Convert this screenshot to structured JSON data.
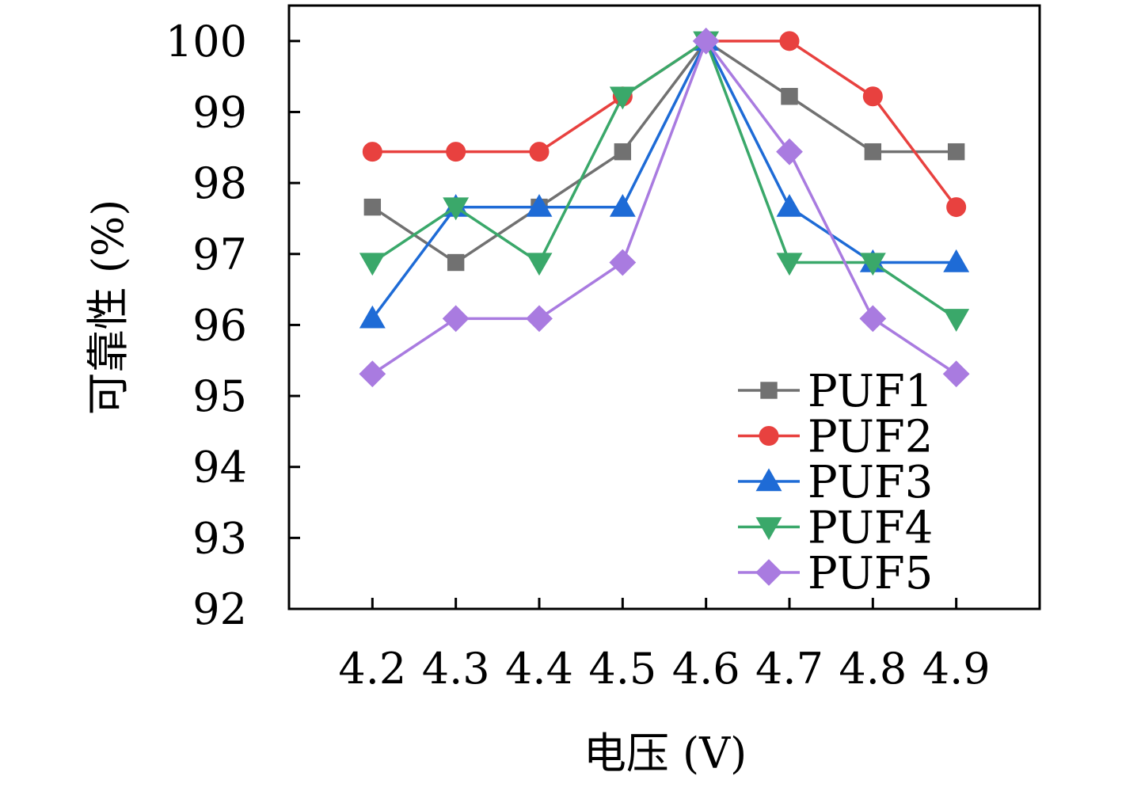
{
  "chart_data": {
    "type": "line",
    "title": "",
    "xlabel": "电压 (V)",
    "ylabel": "可靠性 (%)",
    "x": [
      4.2,
      4.3,
      4.4,
      4.5,
      4.6,
      4.7,
      4.8,
      4.9
    ],
    "x_tick_labels": [
      "4.2",
      "4.3",
      "4.4",
      "4.5",
      "4.6",
      "4.7",
      "4.8",
      "4.9"
    ],
    "xlim": [
      4.1,
      5.0
    ],
    "ylim": [
      92,
      100.5
    ],
    "y_ticks": [
      92,
      93,
      94,
      95,
      96,
      97,
      98,
      99,
      100
    ],
    "y_tick_labels": [
      "92",
      "93",
      "94",
      "95",
      "96",
      "97",
      "98",
      "99",
      "100"
    ],
    "grid": false,
    "legend_position": "bottom-right",
    "series": [
      {
        "name": "PUF1",
        "color": "#717171",
        "marker": "square",
        "values": [
          97.66,
          96.88,
          97.66,
          98.44,
          100,
          99.22,
          98.44,
          98.44
        ]
      },
      {
        "name": "PUF2",
        "color": "#e8413f",
        "marker": "circle",
        "values": [
          98.44,
          98.44,
          98.44,
          99.22,
          100,
          100,
          99.22,
          97.66
        ]
      },
      {
        "name": "PUF3",
        "color": "#1e6bd6",
        "marker": "triangle-up",
        "values": [
          96.09,
          97.66,
          97.66,
          97.66,
          100,
          97.66,
          96.88,
          96.88
        ]
      },
      {
        "name": "PUF4",
        "color": "#3aa86a",
        "marker": "triangle-down",
        "values": [
          96.88,
          97.66,
          96.88,
          99.22,
          100,
          96.88,
          96.88,
          96.09
        ]
      },
      {
        "name": "PUF5",
        "color": "#a97be0",
        "marker": "diamond",
        "values": [
          95.31,
          96.09,
          96.09,
          96.88,
          100,
          98.44,
          96.09,
          95.31
        ]
      }
    ]
  }
}
